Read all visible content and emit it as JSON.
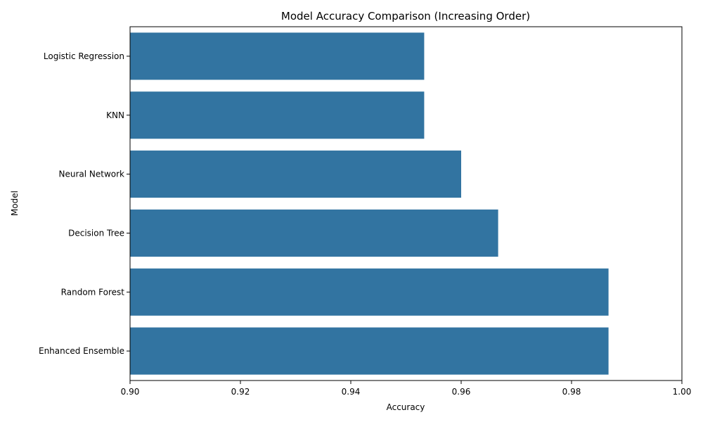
{
  "colors": {
    "bar": "#3274a1",
    "axis": "#000000",
    "background": "#ffffff"
  },
  "chart_data": {
    "type": "bar",
    "orientation": "horizontal",
    "title": "Model Accuracy Comparison (Increasing Order)",
    "xlabel": "Accuracy",
    "ylabel": "Model",
    "categories": [
      "Logistic Regression",
      "KNN",
      "Neural Network",
      "Decision Tree",
      "Random Forest",
      "Enhanced Ensemble"
    ],
    "values": [
      0.9533,
      0.9533,
      0.96,
      0.9667,
      0.9867,
      0.9867
    ],
    "xlim": [
      0.9,
      1.0
    ],
    "xticks": [
      "0.90",
      "0.92",
      "0.94",
      "0.96",
      "0.98",
      "1.00"
    ],
    "grid": false,
    "legend": "none"
  }
}
